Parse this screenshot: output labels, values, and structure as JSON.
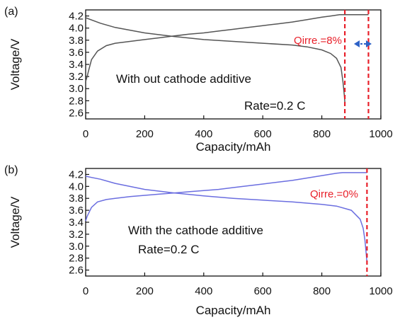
{
  "chart_data": [
    {
      "type": "line",
      "panel_label": "(a)",
      "xlabel": "Capacity/mAh",
      "ylabel": "Voltage/V",
      "xlim": [
        0,
        1000
      ],
      "ylim": [
        2.5,
        4.3
      ],
      "xticks": [
        "0",
        "200",
        "400",
        "600",
        "800",
        "1000"
      ],
      "yticks": [
        "2.6",
        "2.8",
        "3.0",
        "3.2",
        "3.4",
        "3.6",
        "3.8",
        "4.0",
        "4.2"
      ],
      "grid": false,
      "line_color": "#555555",
      "annotation_color": "#e8202a",
      "arrow_color": "#2e62c7",
      "annotations": [
        "With out cathode additive",
        "Rate=0.2 C",
        "Qirre.=8%"
      ],
      "dashed_lines_x": [
        878,
        958
      ],
      "series": [
        {
          "x": [
            0,
            5,
            10,
            20,
            40,
            70,
            100,
            150,
            200,
            250,
            300,
            350,
            400,
            450,
            500,
            550,
            600,
            650,
            700,
            750,
            800,
            830,
            860,
            880,
            900,
            958
          ],
          "y": [
            3.12,
            3.2,
            3.3,
            3.48,
            3.62,
            3.71,
            3.75,
            3.78,
            3.81,
            3.84,
            3.87,
            3.9,
            3.92,
            3.95,
            3.98,
            4.01,
            4.04,
            4.07,
            4.1,
            4.14,
            4.18,
            4.2,
            4.22,
            4.22,
            4.22,
            4.22
          ]
        },
        {
          "x": [
            0,
            50,
            100,
            200,
            300,
            400,
            500,
            600,
            700,
            750,
            800,
            830,
            850,
            865,
            872,
            876,
            878
          ],
          "y": [
            4.17,
            4.08,
            4.01,
            3.92,
            3.86,
            3.81,
            3.78,
            3.75,
            3.72,
            3.69,
            3.64,
            3.58,
            3.5,
            3.35,
            3.1,
            2.9,
            2.78
          ]
        }
      ]
    },
    {
      "type": "line",
      "panel_label": "(b)",
      "xlabel": "Capacity/mAh",
      "ylabel": "Voltage/V",
      "xlim": [
        0,
        1000
      ],
      "ylim": [
        2.5,
        4.3
      ],
      "xticks": [
        "0",
        "200",
        "400",
        "600",
        "800",
        "1000"
      ],
      "yticks": [
        "2.6",
        "2.8",
        "3.0",
        "3.2",
        "3.4",
        "3.6",
        "3.8",
        "4.0",
        "4.2"
      ],
      "grid": false,
      "line_color": "#6b6ee0",
      "annotation_color": "#e8202a",
      "annotations": [
        "With the cathode additive",
        "Rate=0.2 C",
        "Qirre.=0%"
      ],
      "dashed_lines_x": [
        953
      ],
      "series": [
        {
          "x": [
            0,
            5,
            10,
            20,
            40,
            70,
            100,
            150,
            200,
            250,
            300,
            350,
            400,
            450,
            500,
            550,
            600,
            650,
            700,
            750,
            800,
            850,
            870,
            900,
            953
          ],
          "y": [
            3.42,
            3.5,
            3.55,
            3.65,
            3.74,
            3.78,
            3.8,
            3.83,
            3.85,
            3.87,
            3.89,
            3.91,
            3.93,
            3.95,
            3.98,
            4.01,
            4.04,
            4.07,
            4.1,
            4.14,
            4.18,
            4.22,
            4.23,
            4.23,
            4.23
          ]
        },
        {
          "x": [
            0,
            50,
            100,
            200,
            300,
            400,
            500,
            600,
            700,
            750,
            800,
            850,
            900,
            930,
            940,
            946,
            950,
            953
          ],
          "y": [
            4.17,
            4.12,
            4.05,
            3.95,
            3.89,
            3.84,
            3.8,
            3.77,
            3.74,
            3.72,
            3.7,
            3.67,
            3.6,
            3.45,
            3.3,
            3.1,
            2.9,
            2.72
          ]
        }
      ]
    }
  ]
}
